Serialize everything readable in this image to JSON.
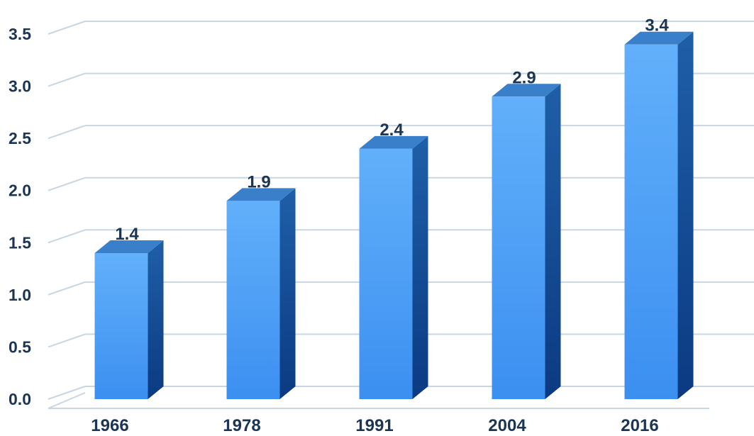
{
  "chart_data": {
    "type": "bar",
    "categories": [
      "1966",
      "1978",
      "1991",
      "2004",
      "2016"
    ],
    "values": [
      1.4,
      1.9,
      2.4,
      2.9,
      3.4
    ],
    "data_labels": [
      "1.4",
      "1.9",
      "2.4",
      "2.9",
      "3.4"
    ],
    "title": "",
    "xlabel": "",
    "ylabel": "",
    "ylim": [
      0,
      3.5
    ],
    "yticks": [
      0,
      0.5,
      1,
      1.5,
      2,
      2.5,
      3,
      3.5
    ],
    "ytick_labels": [
      "0.0",
      "0.5",
      "1.0",
      "1.5",
      "2.0",
      "2.5",
      "3.0",
      "3.5"
    ],
    "grid": true,
    "legend": "none",
    "style": "3d-column",
    "colors": {
      "bar_front_light": "#62b0fb",
      "bar_front_dark": "#3b8ff0",
      "bar_side_light": "#1f5fa8",
      "bar_side_dark": "#0b3a82",
      "bar_top": "#3a7fc9",
      "grid": "#c8d6e2",
      "text": "#1b3553"
    }
  }
}
